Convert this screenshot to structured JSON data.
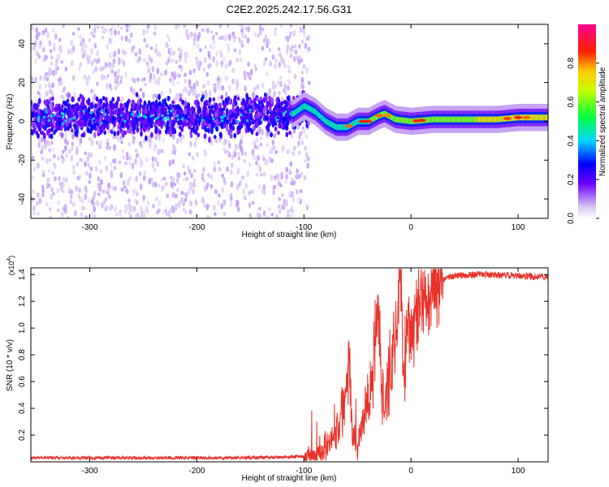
{
  "title": "C2E2.2025.242.17.56.G31",
  "chart_data": [
    {
      "type": "heatmap",
      "name": "spectrogram",
      "xlabel": "Height of straight line (km)",
      "ylabel": "Frequency (Hz)",
      "xlim": [
        -355,
        128
      ],
      "ylim": [
        -50,
        50
      ],
      "x_ticks": [
        -300,
        -200,
        -100,
        0,
        100
      ],
      "y_ticks": [
        -40,
        -20,
        0,
        20,
        40
      ],
      "ridge": [
        {
          "x": -355,
          "y": 2
        },
        {
          "x": -300,
          "y": 2
        },
        {
          "x": -250,
          "y": 2
        },
        {
          "x": -200,
          "y": 2
        },
        {
          "x": -150,
          "y": 3
        },
        {
          "x": -110,
          "y": 4
        },
        {
          "x": -100,
          "y": 8
        },
        {
          "x": -90,
          "y": 5
        },
        {
          "x": -80,
          "y": 0
        },
        {
          "x": -70,
          "y": -3
        },
        {
          "x": -60,
          "y": -3
        },
        {
          "x": -50,
          "y": 0
        },
        {
          "x": -40,
          "y": 0
        },
        {
          "x": -30,
          "y": 3
        },
        {
          "x": -25,
          "y": 4
        },
        {
          "x": -15,
          "y": 1
        },
        {
          "x": 0,
          "y": 0
        },
        {
          "x": 20,
          "y": 1
        },
        {
          "x": 50,
          "y": 1
        },
        {
          "x": 80,
          "y": 1
        },
        {
          "x": 100,
          "y": 2
        },
        {
          "x": 128,
          "y": 2
        }
      ],
      "colorbar": {
        "label": "Normalized spectral amplitude",
        "range": [
          0,
          1
        ],
        "ticks": [
          "0.0",
          "0.2",
          "0.4",
          "0.6",
          "0.8"
        ]
      }
    },
    {
      "type": "line",
      "name": "snr",
      "xlabel": "Height of straight line (km)",
      "ylabel": "SNR (10 * v/v)",
      "scale_note_prefix": "(x10",
      "scale_note_exp": "4",
      "scale_note_suffix": ")",
      "xlim": [
        -355,
        128
      ],
      "ylim": [
        0,
        1.45
      ],
      "x_ticks": [
        -300,
        -200,
        -100,
        0,
        100
      ],
      "y_ticks": [
        "0.2",
        "0.4",
        "0.6",
        "0.8",
        "1.0",
        "1.2",
        "1.4"
      ],
      "series": [
        {
          "name": "SNR",
          "color": "#e8322a",
          "points": [
            {
              "x": -355,
              "y": 0.03
            },
            {
              "x": -300,
              "y": 0.03
            },
            {
              "x": -250,
              "y": 0.03
            },
            {
              "x": -200,
              "y": 0.03
            },
            {
              "x": -150,
              "y": 0.03
            },
            {
              "x": -120,
              "y": 0.035
            },
            {
              "x": -100,
              "y": 0.04
            },
            {
              "x": -90,
              "y": 0.05
            },
            {
              "x": -80,
              "y": 0.1
            },
            {
              "x": -70,
              "y": 0.2
            },
            {
              "x": -62,
              "y": 0.45
            },
            {
              "x": -58,
              "y": 0.85
            },
            {
              "x": -55,
              "y": 0.2
            },
            {
              "x": -50,
              "y": 0.1
            },
            {
              "x": -45,
              "y": 0.3
            },
            {
              "x": -40,
              "y": 0.5
            },
            {
              "x": -35,
              "y": 0.7
            },
            {
              "x": -31,
              "y": 1.2
            },
            {
              "x": -28,
              "y": 0.6
            },
            {
              "x": -25,
              "y": 0.35
            },
            {
              "x": -22,
              "y": 0.6
            },
            {
              "x": -18,
              "y": 0.8
            },
            {
              "x": -14,
              "y": 0.9
            },
            {
              "x": -10,
              "y": 1.42
            },
            {
              "x": -7,
              "y": 0.7
            },
            {
              "x": -4,
              "y": 0.9
            },
            {
              "x": 0,
              "y": 1.0
            },
            {
              "x": 5,
              "y": 1.1
            },
            {
              "x": 10,
              "y": 1.22
            },
            {
              "x": 20,
              "y": 1.3
            },
            {
              "x": 30,
              "y": 1.36
            },
            {
              "x": 40,
              "y": 1.39
            },
            {
              "x": 60,
              "y": 1.4
            },
            {
              "x": 80,
              "y": 1.4
            },
            {
              "x": 100,
              "y": 1.39
            },
            {
              "x": 128,
              "y": 1.38
            }
          ]
        }
      ]
    }
  ]
}
